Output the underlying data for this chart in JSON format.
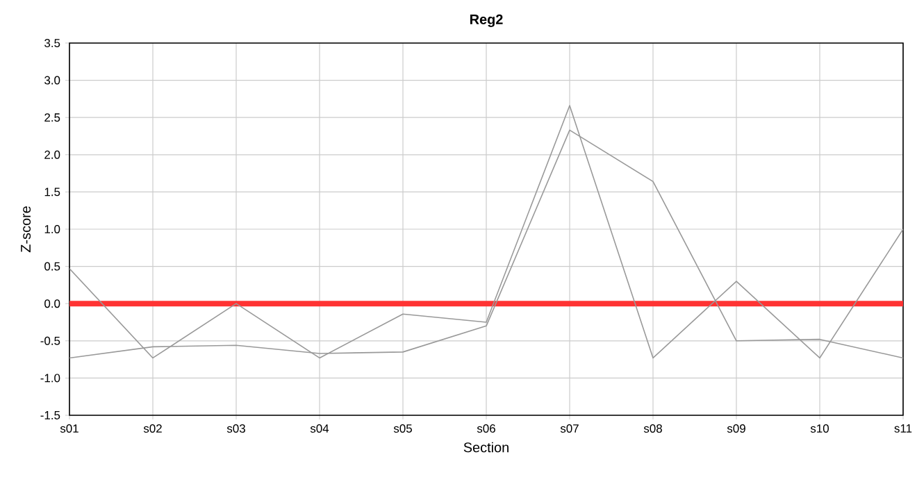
{
  "chart_data": {
    "type": "line",
    "title": "Reg2",
    "xlabel": "Section",
    "ylabel": "Z-score",
    "categories": [
      "s01",
      "s02",
      "s03",
      "s04",
      "s05",
      "s06",
      "s07",
      "s08",
      "s09",
      "s10",
      "s11"
    ],
    "series": [
      {
        "color": "#999999",
        "values": [
          0.47,
          -0.73,
          0.0,
          -0.73,
          -0.14,
          -0.25,
          2.66,
          -0.73,
          0.3,
          -0.73,
          1.0
        ]
      },
      {
        "color": "#999999",
        "values": [
          -0.73,
          -0.58,
          -0.56,
          -0.67,
          -0.65,
          -0.3,
          2.33,
          1.64,
          -0.5,
          -0.48,
          -0.73
        ]
      }
    ],
    "ylim": [
      -1.5,
      3.5
    ],
    "yticks": [
      {
        "value": -1.5,
        "label": "-1.5"
      },
      {
        "value": -1.0,
        "label": "-1.0"
      },
      {
        "value": -0.5,
        "label": "-0.5"
      },
      {
        "value": 0,
        "label": "0.0"
      },
      {
        "value": 0.5,
        "label": "0.5"
      },
      {
        "value": 1.0,
        "label": "1.0"
      },
      {
        "value": 1.5,
        "label": "1.5"
      },
      {
        "value": 2.0,
        "label": "2.0"
      },
      {
        "value": 2.5,
        "label": "2.5"
      },
      {
        "value": 3.0,
        "label": "3.0"
      },
      {
        "value": 3.5,
        "label": "3.5"
      }
    ],
    "ref_lines": [
      {
        "axis": "y",
        "value": 0,
        "color": "#ff3333"
      }
    ],
    "grid": true,
    "marker": "none",
    "line_style": "solid"
  }
}
